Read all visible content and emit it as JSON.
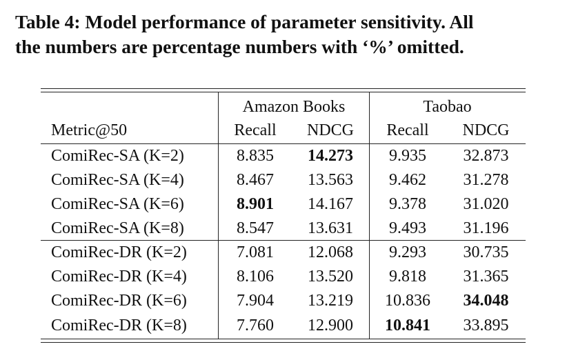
{
  "caption": {
    "line1": "Table 4:  Model performance of parameter sensitivity. All",
    "line2": "the numbers are percentage numbers with ‘%’ omitted."
  },
  "table": {
    "groups": [
      "Amazon Books",
      "Taobao"
    ],
    "corner": "Metric@50",
    "columns": [
      "Recall",
      "NDCG",
      "Recall",
      "NDCG"
    ],
    "rows": [
      {
        "label": "ComiRec-SA (K=2)",
        "values": [
          "8.835",
          "14.273",
          "9.935",
          "32.873"
        ],
        "bold": [
          false,
          true,
          false,
          false
        ]
      },
      {
        "label": "ComiRec-SA (K=4)",
        "values": [
          "8.467",
          "13.563",
          "9.462",
          "31.278"
        ],
        "bold": [
          false,
          false,
          false,
          false
        ]
      },
      {
        "label": "ComiRec-SA (K=6)",
        "values": [
          "8.901",
          "14.167",
          "9.378",
          "31.020"
        ],
        "bold": [
          true,
          false,
          false,
          false
        ]
      },
      {
        "label": "ComiRec-SA (K=8)",
        "values": [
          "8.547",
          "13.631",
          "9.493",
          "31.196"
        ],
        "bold": [
          false,
          false,
          false,
          false
        ]
      },
      {
        "label": "ComiRec-DR (K=2)",
        "values": [
          "7.081",
          "12.068",
          "9.293",
          "30.735"
        ],
        "bold": [
          false,
          false,
          false,
          false
        ]
      },
      {
        "label": "ComiRec-DR (K=4)",
        "values": [
          "8.106",
          "13.520",
          "9.818",
          "31.365"
        ],
        "bold": [
          false,
          false,
          false,
          false
        ]
      },
      {
        "label": "ComiRec-DR (K=6)",
        "values": [
          "7.904",
          "13.219",
          "10.836",
          "34.048"
        ],
        "bold": [
          false,
          false,
          false,
          true
        ]
      },
      {
        "label": "ComiRec-DR (K=8)",
        "values": [
          "7.760",
          "12.900",
          "10.841",
          "33.895"
        ],
        "bold": [
          false,
          false,
          true,
          false
        ]
      }
    ]
  }
}
